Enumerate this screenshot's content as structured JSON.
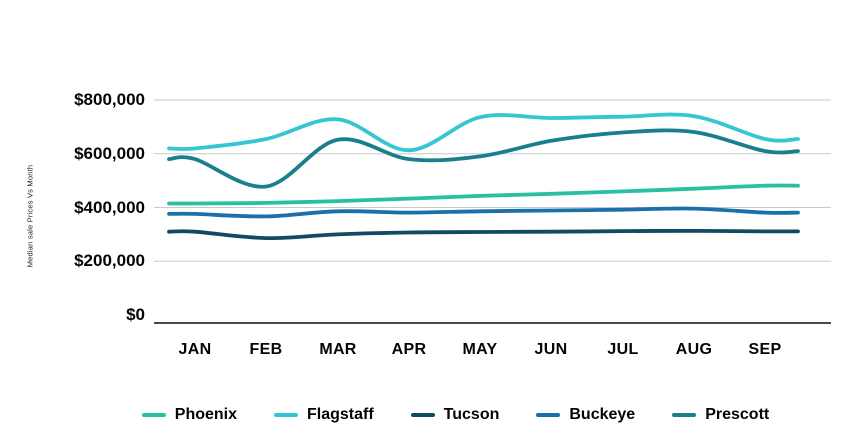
{
  "page": {
    "background": "#ffffff",
    "text_color": "#050505"
  },
  "chart_data": {
    "type": "line",
    "title": "",
    "xlabel": "",
    "ylabel": "Median sale Prices Vs Month",
    "categories": [
      "JAN",
      "FEB",
      "MAR",
      "APR",
      "MAY",
      "JUN",
      "JUL",
      "AUG",
      "SEP"
    ],
    "ylim": [
      0,
      800000
    ],
    "ytick_step": 200000,
    "ytick_labels": [
      "$0",
      "$200,000",
      "$400,000",
      "$600,000",
      "$800,000"
    ],
    "grid": true,
    "gridline_color": "#c9c9c9",
    "axis_color": "#4a4a4a",
    "legend_position": "bottom",
    "line_width": 3.8,
    "series": [
      {
        "name": "Phoenix",
        "color": "#2abfa3",
        "values": [
          415000,
          417000,
          424000,
          433000,
          443000,
          451000,
          460000,
          470000,
          481000
        ]
      },
      {
        "name": "Flagstaff",
        "color": "#35c6d3",
        "values": [
          620000,
          655000,
          728000,
          613000,
          736000,
          733000,
          738000,
          740000,
          655000
        ]
      },
      {
        "name": "Tucson",
        "color": "#114a63",
        "values": [
          310000,
          286000,
          300000,
          307000,
          309000,
          310000,
          312000,
          313000,
          311000
        ]
      },
      {
        "name": "Buckeye",
        "color": "#1b70a9",
        "values": [
          376000,
          367000,
          386000,
          381000,
          386000,
          389000,
          392000,
          396000,
          381000
        ]
      },
      {
        "name": "Prescott",
        "color": "#1a7f8d",
        "values": [
          580000,
          478000,
          652000,
          580000,
          590000,
          648000,
          679000,
          681000,
          610000
        ]
      }
    ]
  }
}
